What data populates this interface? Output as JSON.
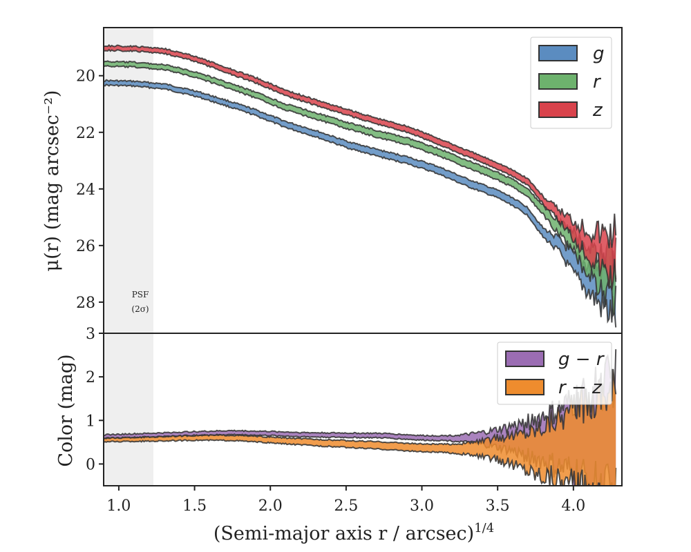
{
  "chart_data": [
    {
      "type": "line",
      "panel": "surface-brightness",
      "ylabel": "μ(r) (mag arcsec⁻²)",
      "xlim": [
        0.9,
        4.32
      ],
      "ylim": [
        29.1,
        18.3
      ],
      "yticks": [
        20,
        22,
        24,
        26,
        28
      ],
      "psf_region": {
        "x_end": 1.23,
        "label_line1": "PSF",
        "label_line2": "(2σ)"
      },
      "legend": {
        "position": "top-right"
      },
      "series": [
        {
          "name": "g",
          "color": "#5b8cc0",
          "x": [
            0.9,
            1.1,
            1.3,
            1.5,
            1.7,
            1.9,
            2.1,
            2.3,
            2.5,
            2.7,
            2.9,
            3.1,
            3.3,
            3.5,
            3.6,
            3.7,
            3.8,
            3.9,
            4.0,
            4.1,
            4.2,
            4.28
          ],
          "y": [
            20.25,
            20.28,
            20.38,
            20.62,
            20.95,
            21.3,
            21.72,
            22.05,
            22.42,
            22.72,
            22.98,
            23.32,
            23.78,
            24.18,
            24.45,
            24.8,
            25.55,
            25.95,
            26.7,
            27.2,
            27.6,
            27.7
          ],
          "err_start": [
            0.08,
            0.15
          ]
        },
        {
          "name": "r",
          "color": "#6db26d",
          "x": [
            0.9,
            1.1,
            1.3,
            1.5,
            1.7,
            1.9,
            2.1,
            2.3,
            2.5,
            2.7,
            2.9,
            3.1,
            3.3,
            3.5,
            3.6,
            3.7,
            3.8,
            3.9,
            4.0,
            4.1,
            4.2,
            4.28
          ],
          "y": [
            19.58,
            19.61,
            19.7,
            19.95,
            20.3,
            20.68,
            21.1,
            21.42,
            21.75,
            22.05,
            22.32,
            22.68,
            23.12,
            23.55,
            23.8,
            24.15,
            24.75,
            25.35,
            25.9,
            26.5,
            27.0,
            27.15
          ],
          "err_start": [
            0.08,
            0.15
          ]
        },
        {
          "name": "z",
          "color": "#d9434c",
          "x": [
            0.9,
            1.1,
            1.3,
            1.5,
            1.7,
            1.9,
            2.1,
            2.3,
            2.5,
            2.7,
            2.9,
            3.1,
            3.3,
            3.5,
            3.6,
            3.7,
            3.8,
            3.9,
            4.0,
            4.1,
            4.2,
            4.28
          ],
          "y": [
            19.02,
            19.05,
            19.12,
            19.4,
            19.78,
            20.15,
            20.6,
            20.95,
            21.28,
            21.6,
            21.88,
            22.3,
            22.75,
            23.18,
            23.45,
            23.75,
            24.4,
            24.9,
            25.4,
            25.85,
            26.2,
            26.3
          ],
          "err_start": [
            0.08,
            0.12
          ]
        }
      ]
    },
    {
      "type": "line",
      "panel": "color",
      "xlabel": "(Semi-major axis r / arcsec)",
      "xlabel_sup": "1/4",
      "ylabel": "Color (mag)",
      "xlim": [
        0.9,
        4.32
      ],
      "ylim": [
        -0.5,
        3.0
      ],
      "xticks": [
        1.0,
        1.5,
        2.0,
        2.5,
        3.0,
        3.5,
        4.0
      ],
      "xtick_labels": [
        "1.0",
        "1.5",
        "2.0",
        "2.5",
        "3.0",
        "3.5",
        "4.0"
      ],
      "yticks": [
        0,
        1,
        2,
        3
      ],
      "legend": {
        "position": "top-right"
      },
      "series": [
        {
          "name": "g − r",
          "color": "#9b6db3",
          "x": [
            0.9,
            1.2,
            1.5,
            1.75,
            2.0,
            2.25,
            2.5,
            2.75,
            3.0,
            3.25,
            3.5,
            3.75,
            3.9,
            4.0,
            4.1,
            4.2,
            4.28
          ],
          "y": [
            0.63,
            0.66,
            0.7,
            0.72,
            0.7,
            0.67,
            0.66,
            0.65,
            0.6,
            0.59,
            0.58,
            0.57,
            0.55,
            0.6,
            0.62,
            0.65,
            0.65
          ],
          "err_start": [
            0.04,
            0.06
          ]
        },
        {
          "name": "r − z",
          "color": "#ee8c2e",
          "x": [
            0.9,
            1.2,
            1.5,
            1.75,
            2.0,
            2.25,
            2.5,
            2.75,
            3.0,
            3.25,
            3.5,
            3.75,
            3.9,
            4.0,
            4.1,
            4.2,
            4.28
          ],
          "y": [
            0.55,
            0.57,
            0.6,
            0.6,
            0.55,
            0.5,
            0.46,
            0.42,
            0.37,
            0.35,
            0.35,
            0.3,
            0.4,
            0.35,
            0.4,
            0.5,
            0.35
          ],
          "err_start": [
            0.04,
            0.12
          ]
        }
      ]
    }
  ]
}
